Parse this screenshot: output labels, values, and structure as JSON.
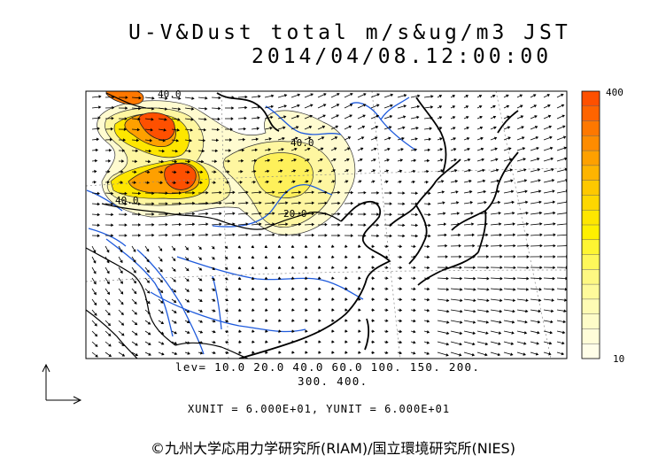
{
  "title": {
    "line1": "U-V&Dust total m/s&ug/m3 JST",
    "line2": "2014/04/08.12:00:00"
  },
  "colorbar": {
    "max_label": "400",
    "min_label": "10",
    "colors": [
      "#fe5000",
      "#fe6400",
      "#fe7800",
      "#fe8c00",
      "#fea000",
      "#feb400",
      "#fec800",
      "#fed700",
      "#fee600",
      "#fef000",
      "#fef532",
      "#fef75a",
      "#fef882",
      "#fefa9b",
      "#fefbb4",
      "#fefcc8",
      "#fffdd8",
      "#fffee8"
    ]
  },
  "contour_labels": [
    "40.0",
    "40.0",
    "40.0",
    "20.0"
  ],
  "footer": {
    "levels_line1": "lev= 10.0 20.0 40.0 60.0 100. 150. 200.",
    "levels_line2": "300. 400.",
    "units": "XUNIT = 6.000E+01, YUNIT = 6.000E+01",
    "credit": "©九州大学応用力学研究所(RIAM)/国立環境研究所(NIES)"
  },
  "map_colors": {
    "coast": "#000000",
    "rivers": "#1e5adc",
    "borders": "#000000",
    "arrows": "#000000"
  }
}
